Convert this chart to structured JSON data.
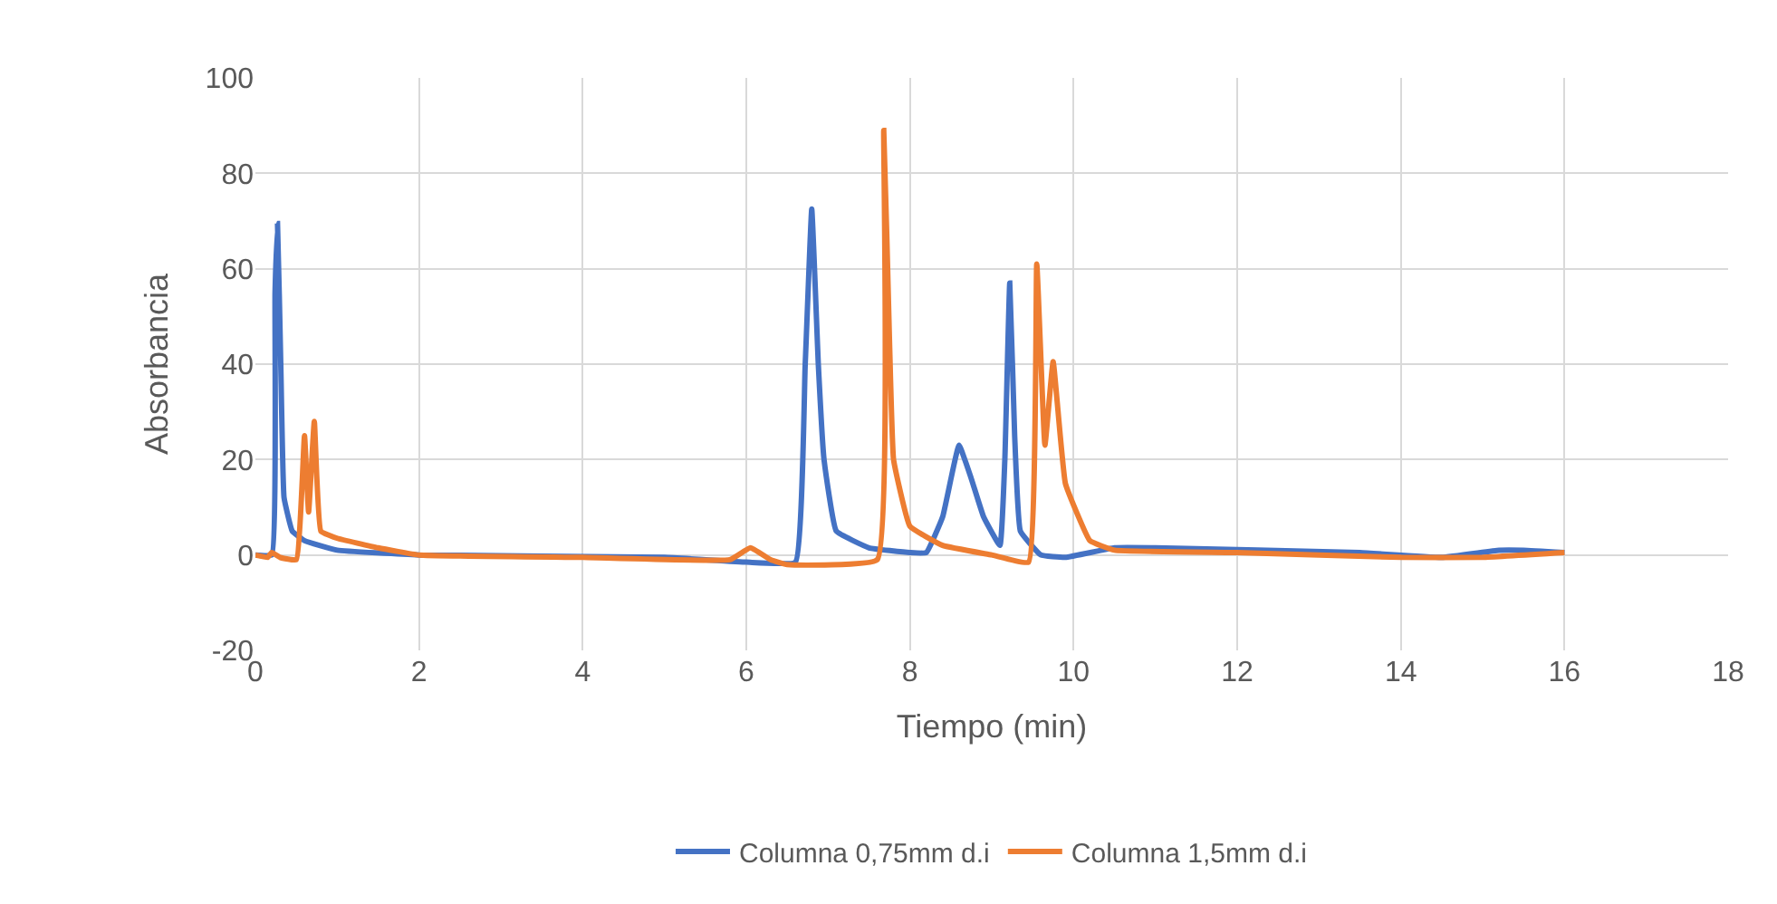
{
  "chart_data": {
    "type": "line",
    "xlabel": "Tiempo (min)",
    "ylabel": "Absorbancia",
    "xlim": [
      0,
      18
    ],
    "xticks": [
      0,
      2,
      4,
      6,
      8,
      10,
      12,
      14,
      16,
      18
    ],
    "ylim": [
      -20,
      100
    ],
    "yticks": [
      -20,
      0,
      20,
      40,
      60,
      80,
      100
    ],
    "grid": true,
    "legend": "bottom",
    "marker": "none",
    "line_style": "solid",
    "series": [
      {
        "name": "Columna 0,75mm d.i",
        "color": "#4472c4",
        "x": [
          0,
          0.2,
          0.24,
          0.27,
          0.31,
          0.35,
          0.45,
          0.6,
          1.0,
          2,
          5,
          6,
          6.6,
          6.72,
          6.8,
          6.88,
          6.95,
          7.1,
          7.5,
          8.0,
          8.2,
          8.4,
          8.6,
          8.75,
          8.9,
          9.1,
          9.16,
          9.22,
          9.28,
          9.35,
          9.6,
          9.9,
          10.5,
          11,
          13.5,
          14.5,
          15.2,
          15.5,
          16
        ],
        "values": [
          0,
          0,
          55,
          69.5,
          40,
          12,
          5,
          3,
          1,
          0,
          -0.5,
          -1.5,
          -1.5,
          40,
          72.5,
          40,
          20,
          5,
          1.5,
          0.5,
          0.5,
          8,
          23,
          16,
          8,
          2,
          20,
          57,
          25,
          5,
          0,
          -0.5,
          1.5,
          1.5,
          0.5,
          -0.5,
          1,
          1,
          0.5
        ]
      },
      {
        "name": "Columna 1,5mm d.i",
        "color": "#ed7d31",
        "x": [
          0,
          0.15,
          0.2,
          0.3,
          0.5,
          0.6,
          0.65,
          0.72,
          0.8,
          1.0,
          1.5,
          2,
          4,
          5.8,
          6.05,
          6.3,
          6.5,
          7.6,
          7.68,
          7.75,
          7.8,
          8.0,
          8.4,
          9,
          9.45,
          9.55,
          9.65,
          9.75,
          9.9,
          10.2,
          10.5,
          12,
          14,
          15,
          16
        ],
        "values": [
          0,
          -0.5,
          0.5,
          -0.5,
          -1,
          25,
          9,
          28,
          5,
          3.5,
          1.5,
          0,
          -0.5,
          -1,
          1.5,
          -1,
          -2,
          -1,
          89,
          45,
          20,
          6,
          2,
          0,
          -1.5,
          61,
          23,
          40.5,
          15,
          3,
          1,
          0.5,
          -0.5,
          -0.5,
          0.5
        ]
      }
    ]
  }
}
